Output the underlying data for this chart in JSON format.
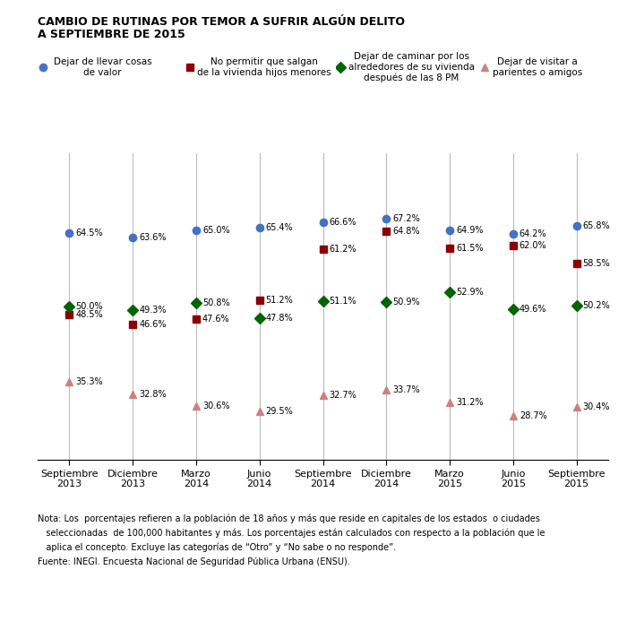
{
  "title_line1": "CAMBIO DE RUTINAS POR TEMOR A SUFRIR ALGÚN DELITO",
  "title_line2": "A SEPTIEMBRE DE 2015",
  "x_labels": [
    "Septiembre\n2013",
    "Diciembre\n2013",
    "Marzo\n2014",
    "Junio\n2014",
    "Septiembre\n2014",
    "Diciembre\n2014",
    "Marzo\n2015",
    "Junio\n2015",
    "Septiembre\n2015"
  ],
  "series": {
    "blue": {
      "label": "Dejar de llevar cosas\nde valor",
      "color": "#4472C4",
      "marker": "o",
      "values": [
        64.5,
        63.6,
        65.0,
        65.4,
        66.6,
        67.2,
        64.9,
        64.2,
        65.8
      ]
    },
    "red": {
      "label": "No permitir que salgan\nde la vivienda hijos menores",
      "color": "#8B0000",
      "marker": "s",
      "values": [
        48.5,
        46.6,
        47.6,
        51.2,
        61.2,
        64.8,
        61.5,
        62.0,
        58.5
      ]
    },
    "green": {
      "label": "Dejar de caminar por los\nalrededores de su vivienda\ndespués de las 8 PM",
      "color": "#006400",
      "marker": "D",
      "values": [
        50.0,
        49.3,
        50.8,
        47.8,
        51.1,
        50.9,
        52.9,
        49.6,
        50.2
      ]
    },
    "salmon": {
      "label": "Dejar de visitar a\nparientes o amigos",
      "color": "#CD8080",
      "marker": "^",
      "values": [
        35.3,
        32.8,
        30.6,
        29.5,
        32.7,
        33.7,
        31.2,
        28.7,
        30.4
      ]
    }
  },
  "note_line1": "Nota: Los  porcentajes refieren a la población de 18 años y más que reside en capitales de los estados  o ciudades",
  "note_line2": "   seleccionadas  de 100,000 habitantes y más. Los porcentajes están calculados con respecto a la población que le",
  "note_line3": "   aplica el concepto. Excluye las categorías de “Otro” y “No sabe o no responde”.",
  "note_line4": "Fuente: INEGI. Encuesta Nacional de Seguridad Pública Urbana (ENSU).",
  "ylim": [
    20,
    80
  ],
  "figsize": [
    7.0,
    7.13
  ],
  "dpi": 100,
  "background_color": "#FFFFFF",
  "font_color": "#000000",
  "marker_size": 6,
  "line_color": "#BBBBBB"
}
